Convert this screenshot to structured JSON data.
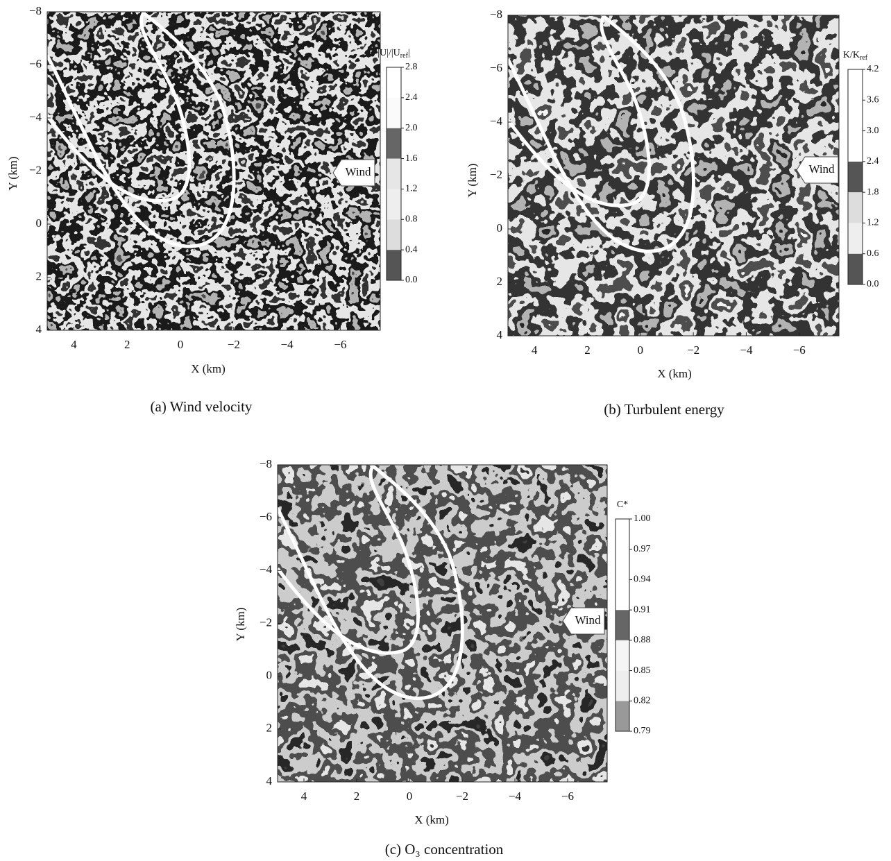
{
  "panels": [
    {
      "caption": "(a) Wind velocity",
      "x_label": "X (km)",
      "y_label": "Y (km)",
      "xlim": [
        5,
        -7.5
      ],
      "ylim": [
        -8,
        4
      ],
      "xticks": [
        4,
        2,
        0,
        {
          "value": -2,
          "label": "−2"
        },
        {
          "value": -4,
          "label": "−4"
        },
        {
          "value": -6,
          "label": "−6"
        }
      ],
      "yticks": [
        {
          "value": -8,
          "label": "−8"
        },
        {
          "value": -6,
          "label": "−6"
        },
        {
          "value": -4,
          "label": "−4"
        },
        {
          "value": -2,
          "label": "−2"
        },
        0,
        2,
        4
      ],
      "annotation": "Wind",
      "colorbar": {
        "label": {
          "main": "|U|/|U",
          "sub": "ref",
          "tail": "|"
        },
        "lim": [
          0,
          2.8
        ],
        "ticks": [
          {
            "value": 0,
            "label": "0.0"
          },
          0.4,
          0.8,
          1.2,
          1.6,
          {
            "value": 2,
            "label": "2.0"
          },
          2.4,
          2.8
        ],
        "band_colors": [
          "#555555",
          "#dddddd",
          "#eeeeee",
          "#e6e6e6",
          "#666666",
          "#fafafa",
          "#ffffff"
        ]
      }
    },
    {
      "caption": "(b) Turbulent energy",
      "x_label": "X (km)",
      "y_label": "Y (km)",
      "xlim": [
        5,
        -7.5
      ],
      "ylim": [
        -8,
        4
      ],
      "xticks": [
        4,
        2,
        0,
        {
          "value": -2,
          "label": "−2"
        },
        {
          "value": -4,
          "label": "−4"
        },
        {
          "value": -6,
          "label": "−6"
        }
      ],
      "yticks": [
        {
          "value": -8,
          "label": "−8"
        },
        {
          "value": -6,
          "label": "−6"
        },
        {
          "value": -4,
          "label": "−4"
        },
        {
          "value": -2,
          "label": "−2"
        },
        0,
        2,
        4
      ],
      "annotation": "Wind",
      "colorbar": {
        "label": {
          "main": "K/K",
          "sub": "ref",
          "tail": ""
        },
        "lim": [
          0,
          4.2
        ],
        "ticks": [
          {
            "value": 0,
            "label": "0.0"
          },
          0.6,
          1.2,
          1.8,
          2.4,
          {
            "value": 3,
            "label": "3.0"
          },
          3.6,
          4.2
        ],
        "band_colors": [
          "#555555",
          "#eeeeee",
          "#dddddd",
          "#555555",
          "#ffffff",
          "#ffffff",
          "#ffffff"
        ]
      }
    },
    {
      "caption": "(c) O₃ concentration",
      "x_label": "X (km)",
      "y_label": "Y (km)",
      "xlim": [
        5,
        -7.5
      ],
      "ylim": [
        -8,
        4
      ],
      "xticks": [
        4,
        2,
        0,
        {
          "value": -2,
          "label": "−2"
        },
        {
          "value": -4,
          "label": "−4"
        },
        {
          "value": -6,
          "label": "−6"
        }
      ],
      "yticks": [
        {
          "value": -8,
          "label": "−8"
        },
        {
          "value": -6,
          "label": "−6"
        },
        {
          "value": -4,
          "label": "−4"
        },
        {
          "value": -2,
          "label": "−2"
        },
        0,
        2,
        4
      ],
      "annotation": "Wind",
      "colorbar": {
        "label": {
          "main": "C*",
          "sub": "",
          "tail": ""
        },
        "lim": [
          0.79,
          1
        ],
        "ticks": [
          0.79,
          0.82,
          0.85,
          0.88,
          0.91,
          0.94,
          0.97,
          {
            "value": 1,
            "label": "1.00"
          }
        ],
        "band_colors": [
          "#999999",
          "#eeeeee",
          "#f5f5f5",
          "#666666",
          "#ffffff",
          "#ffffff",
          "#ffffff"
        ]
      }
    }
  ]
}
